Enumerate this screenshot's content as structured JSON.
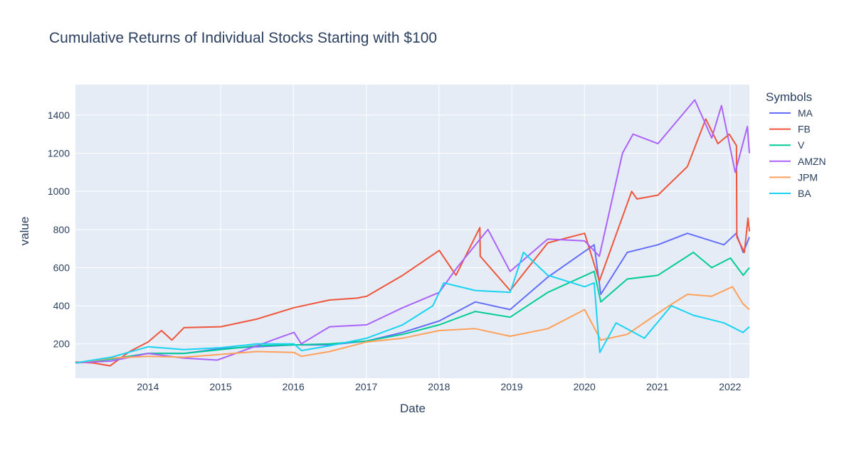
{
  "chart_data": {
    "type": "line",
    "title": "Cumulative Returns of Individual Stocks Starting with $100",
    "xlabel": "Date",
    "ylabel": "value",
    "legend_title": "Symbols",
    "legend_position": "right",
    "grid": true,
    "plot_background": "#e5ecf6",
    "xlim": [
      "2013-01-02",
      "2022-04-08"
    ],
    "ylim": [
      20,
      1560
    ],
    "x_ticks": [
      "2014",
      "2015",
      "2016",
      "2017",
      "2018",
      "2019",
      "2020",
      "2021",
      "2022"
    ],
    "y_ticks": [
      200,
      400,
      600,
      800,
      1000,
      1200,
      1400
    ],
    "series": [
      {
        "name": "MA",
        "color": "#636efa",
        "x": [
          "2013-01-02",
          "2013-07-01",
          "2014-01-02",
          "2014-07-01",
          "2015-01-02",
          "2015-07-01",
          "2016-01-04",
          "2016-07-01",
          "2017-01-03",
          "2017-07-03",
          "2018-01-02",
          "2018-07-02",
          "2018-12-24",
          "2019-07-01",
          "2020-02-19",
          "2020-03-23",
          "2020-08-03",
          "2021-01-04",
          "2021-06-01",
          "2021-12-01",
          "2022-02-01",
          "2022-03-08",
          "2022-04-08"
        ],
        "y": [
          100,
          120,
          150,
          150,
          175,
          185,
          195,
          195,
          215,
          260,
          320,
          420,
          380,
          550,
          720,
          460,
          680,
          720,
          780,
          720,
          780,
          680,
          760
        ]
      },
      {
        "name": "FB",
        "color": "#ef553b",
        "x": [
          "2013-01-02",
          "2013-04-01",
          "2013-06-25",
          "2013-10-01",
          "2014-01-02",
          "2014-03-10",
          "2014-05-01",
          "2014-07-01",
          "2015-01-02",
          "2015-07-01",
          "2016-01-04",
          "2016-07-01",
          "2016-11-15",
          "2017-01-03",
          "2017-07-03",
          "2018-01-02",
          "2018-03-27",
          "2018-07-25",
          "2018-07-27",
          "2018-12-24",
          "2019-07-01",
          "2020-01-02",
          "2020-03-16",
          "2020-08-25",
          "2020-09-21",
          "2021-01-04",
          "2021-06-01",
          "2021-09-01",
          "2021-11-01",
          "2021-12-28",
          "2022-02-02",
          "2022-02-04",
          "2022-03-14",
          "2022-04-01",
          "2022-04-08"
        ],
        "y": [
          105,
          100,
          85,
          160,
          210,
          270,
          220,
          285,
          290,
          330,
          390,
          430,
          440,
          450,
          560,
          690,
          560,
          810,
          660,
          480,
          730,
          780,
          530,
          1000,
          960,
          980,
          1130,
          1380,
          1250,
          1300,
          1240,
          760,
          680,
          860,
          790
        ]
      },
      {
        "name": "V",
        "color": "#00cc96",
        "x": [
          "2013-01-02",
          "2013-07-01",
          "2014-01-02",
          "2014-07-01",
          "2015-01-02",
          "2015-07-01",
          "2016-01-04",
          "2016-07-01",
          "2017-01-03",
          "2017-07-03",
          "2018-01-02",
          "2018-07-02",
          "2018-12-24",
          "2019-07-01",
          "2020-02-19",
          "2020-03-23",
          "2020-08-03",
          "2021-01-04",
          "2021-07-01",
          "2021-10-01",
          "2022-01-03",
          "2022-03-08",
          "2022-04-08"
        ],
        "y": [
          100,
          120,
          150,
          150,
          170,
          190,
          195,
          200,
          215,
          250,
          300,
          370,
          340,
          470,
          580,
          420,
          540,
          560,
          680,
          600,
          650,
          560,
          600
        ]
      },
      {
        "name": "AMZN",
        "color": "#ab63fa",
        "x": [
          "2013-01-02",
          "2013-07-01",
          "2014-01-02",
          "2014-07-01",
          "2014-12-15",
          "2015-07-01",
          "2016-01-04",
          "2016-02-10",
          "2016-07-01",
          "2017-01-03",
          "2017-07-03",
          "2018-01-02",
          "2018-04-01",
          "2018-09-04",
          "2018-12-24",
          "2019-07-01",
          "2020-01-02",
          "2020-03-16",
          "2020-07-10",
          "2020-09-01",
          "2021-01-04",
          "2021-07-08",
          "2021-10-01",
          "2021-11-19",
          "2022-01-27",
          "2022-03-29",
          "2022-04-08"
        ],
        "y": [
          100,
          110,
          150,
          125,
          115,
          190,
          260,
          200,
          290,
          300,
          390,
          470,
          600,
          800,
          580,
          750,
          740,
          660,
          1200,
          1300,
          1250,
          1480,
          1280,
          1450,
          1100,
          1340,
          1200
        ]
      },
      {
        "name": "JPM",
        "color": "#ffa15a",
        "x": [
          "2013-01-02",
          "2013-07-01",
          "2014-01-02",
          "2014-07-01",
          "2015-01-02",
          "2015-07-01",
          "2016-01-04",
          "2016-02-11",
          "2016-07-01",
          "2017-01-03",
          "2017-07-03",
          "2018-01-02",
          "2018-07-02",
          "2018-12-24",
          "2019-07-01",
          "2020-01-02",
          "2020-03-23",
          "2020-08-03",
          "2020-11-09",
          "2021-03-01",
          "2021-06-01",
          "2021-10-01",
          "2022-01-13",
          "2022-03-07",
          "2022-04-08"
        ],
        "y": [
          100,
          125,
          135,
          130,
          145,
          160,
          155,
          135,
          160,
          210,
          230,
          270,
          280,
          240,
          280,
          380,
          220,
          250,
          320,
          400,
          460,
          450,
          500,
          410,
          380
        ]
      },
      {
        "name": "BA",
        "color": "#19d3f3",
        "x": [
          "2013-01-02",
          "2013-07-01",
          "2014-01-02",
          "2014-07-01",
          "2015-01-02",
          "2015-07-01",
          "2016-01-04",
          "2016-02-11",
          "2016-07-01",
          "2017-01-03",
          "2017-07-03",
          "2017-12-01",
          "2018-01-25",
          "2018-07-02",
          "2018-12-24",
          "2019-03-01",
          "2019-07-01",
          "2020-01-02",
          "2020-02-19",
          "2020-03-18",
          "2020-06-08",
          "2020-10-28",
          "2021-03-12",
          "2021-07-01",
          "2021-12-01",
          "2022-03-07",
          "2022-04-08"
        ],
        "y": [
          100,
          130,
          185,
          170,
          180,
          200,
          200,
          165,
          190,
          230,
          300,
          400,
          520,
          480,
          470,
          680,
          560,
          500,
          520,
          155,
          310,
          230,
          400,
          350,
          310,
          260,
          290
        ]
      }
    ]
  }
}
